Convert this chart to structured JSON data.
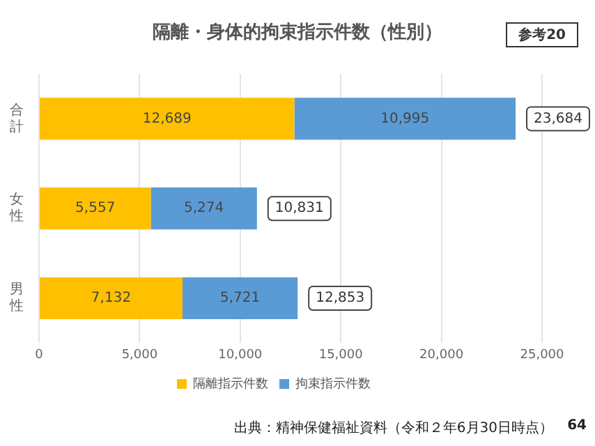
{
  "chart_data": {
    "type": "bar",
    "orientation": "horizontal",
    "stacked": true,
    "title": "隔離・身体的拘束指示件数（性別）",
    "categories": [
      "合計",
      "女性",
      "男性"
    ],
    "series": [
      {
        "name": "隔離指示件数",
        "color": "#ffc000",
        "values": [
          12689,
          5557,
          7132
        ],
        "value_labels": [
          "12,689",
          "5,557",
          "7,132"
        ]
      },
      {
        "name": "拘束指示件数",
        "color": "#5b9bd5",
        "values": [
          10995,
          5274,
          5721
        ],
        "value_labels": [
          "10,995",
          "5,274",
          "5,721"
        ]
      }
    ],
    "totals": [
      "23,684",
      "10,831",
      "12,853"
    ],
    "xlim": [
      0,
      25000
    ],
    "xticks": [
      {
        "value": 0,
        "label": "0"
      },
      {
        "value": 5000,
        "label": "5,000"
      },
      {
        "value": 10000,
        "label": "10,000"
      },
      {
        "value": 15000,
        "label": "15,000"
      },
      {
        "value": 20000,
        "label": "20,000"
      },
      {
        "value": 25000,
        "label": "25,000"
      }
    ],
    "grid": "x",
    "legend": "bottom",
    "annotations": [
      "参考20",
      "出典：精神保健福祉資料（令和２年6月30日時点）",
      "64"
    ]
  }
}
